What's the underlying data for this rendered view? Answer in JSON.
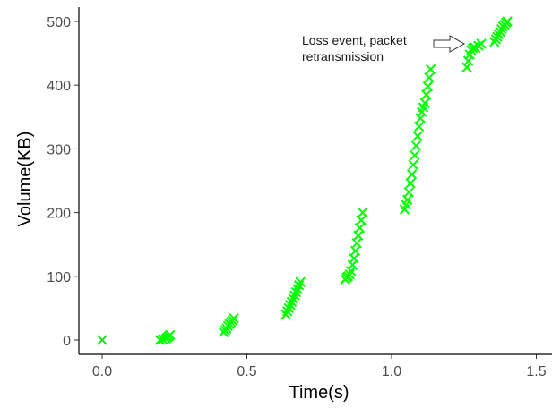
{
  "chart_data": {
    "type": "scatter",
    "xlabel": "Time(s)",
    "ylabel": "Volume(KB)",
    "xlim": [
      -0.07,
      1.5
    ],
    "ylim": [
      -12,
      508
    ],
    "x_ticks": [
      0.0,
      0.5,
      1.0,
      1.5
    ],
    "x_tick_labels": [
      "0.0",
      "0.5",
      "1.0",
      "1.5"
    ],
    "y_ticks": [
      0,
      100,
      200,
      300,
      400,
      500
    ],
    "y_tick_labels": [
      "0",
      "100",
      "200",
      "300",
      "400",
      "500"
    ],
    "grid": false,
    "marker": "x",
    "color": "#00ff00",
    "marker_color": "#22dd22",
    "annotation": {
      "lines": [
        "Loss event, packet",
        "retransmission"
      ],
      "target": {
        "x": 1.27,
        "y": 460
      }
    },
    "points": [
      {
        "x": 0.0,
        "y": 0
      },
      {
        "x": 0.2,
        "y": 0
      },
      {
        "x": 0.21,
        "y": 1
      },
      {
        "x": 0.22,
        "y": 2
      },
      {
        "x": 0.225,
        "y": 4
      },
      {
        "x": 0.23,
        "y": 6
      },
      {
        "x": 0.235,
        "y": 8
      },
      {
        "x": 0.42,
        "y": 12
      },
      {
        "x": 0.425,
        "y": 15
      },
      {
        "x": 0.43,
        "y": 18
      },
      {
        "x": 0.435,
        "y": 22
      },
      {
        "x": 0.44,
        "y": 25
      },
      {
        "x": 0.445,
        "y": 28
      },
      {
        "x": 0.45,
        "y": 31
      },
      {
        "x": 0.455,
        "y": 34
      },
      {
        "x": 0.635,
        "y": 40
      },
      {
        "x": 0.64,
        "y": 45
      },
      {
        "x": 0.645,
        "y": 50
      },
      {
        "x": 0.65,
        "y": 55
      },
      {
        "x": 0.655,
        "y": 60
      },
      {
        "x": 0.66,
        "y": 65
      },
      {
        "x": 0.665,
        "y": 70
      },
      {
        "x": 0.67,
        "y": 75
      },
      {
        "x": 0.675,
        "y": 80
      },
      {
        "x": 0.68,
        "y": 86
      },
      {
        "x": 0.685,
        "y": 91
      },
      {
        "x": 0.84,
        "y": 95
      },
      {
        "x": 0.845,
        "y": 98
      },
      {
        "x": 0.85,
        "y": 100
      },
      {
        "x": 0.855,
        "y": 103
      },
      {
        "x": 0.86,
        "y": 108
      },
      {
        "x": 0.865,
        "y": 118
      },
      {
        "x": 0.87,
        "y": 128
      },
      {
        "x": 0.875,
        "y": 140
      },
      {
        "x": 0.88,
        "y": 152
      },
      {
        "x": 0.885,
        "y": 164
      },
      {
        "x": 0.89,
        "y": 176
      },
      {
        "x": 0.895,
        "y": 188
      },
      {
        "x": 0.9,
        "y": 200
      },
      {
        "x": 1.045,
        "y": 205
      },
      {
        "x": 1.05,
        "y": 212
      },
      {
        "x": 1.055,
        "y": 220
      },
      {
        "x": 1.06,
        "y": 232
      },
      {
        "x": 1.065,
        "y": 246
      },
      {
        "x": 1.07,
        "y": 260
      },
      {
        "x": 1.075,
        "y": 275
      },
      {
        "x": 1.08,
        "y": 290
      },
      {
        "x": 1.085,
        "y": 305
      },
      {
        "x": 1.09,
        "y": 320
      },
      {
        "x": 1.095,
        "y": 335
      },
      {
        "x": 1.1,
        "y": 348
      },
      {
        "x": 1.105,
        "y": 358
      },
      {
        "x": 1.11,
        "y": 365
      },
      {
        "x": 1.115,
        "y": 372
      },
      {
        "x": 1.12,
        "y": 385
      },
      {
        "x": 1.125,
        "y": 398
      },
      {
        "x": 1.13,
        "y": 412
      },
      {
        "x": 1.135,
        "y": 425
      },
      {
        "x": 1.26,
        "y": 428
      },
      {
        "x": 1.265,
        "y": 438
      },
      {
        "x": 1.27,
        "y": 448
      },
      {
        "x": 1.275,
        "y": 455
      },
      {
        "x": 1.28,
        "y": 458
      },
      {
        "x": 1.285,
        "y": 460
      },
      {
        "x": 1.29,
        "y": 458
      },
      {
        "x": 1.3,
        "y": 462
      },
      {
        "x": 1.31,
        "y": 465
      },
      {
        "x": 1.355,
        "y": 468
      },
      {
        "x": 1.36,
        "y": 472
      },
      {
        "x": 1.365,
        "y": 476
      },
      {
        "x": 1.37,
        "y": 480
      },
      {
        "x": 1.375,
        "y": 484
      },
      {
        "x": 1.38,
        "y": 488
      },
      {
        "x": 1.385,
        "y": 492
      },
      {
        "x": 1.39,
        "y": 495
      },
      {
        "x": 1.395,
        "y": 498
      },
      {
        "x": 1.4,
        "y": 500
      }
    ]
  }
}
